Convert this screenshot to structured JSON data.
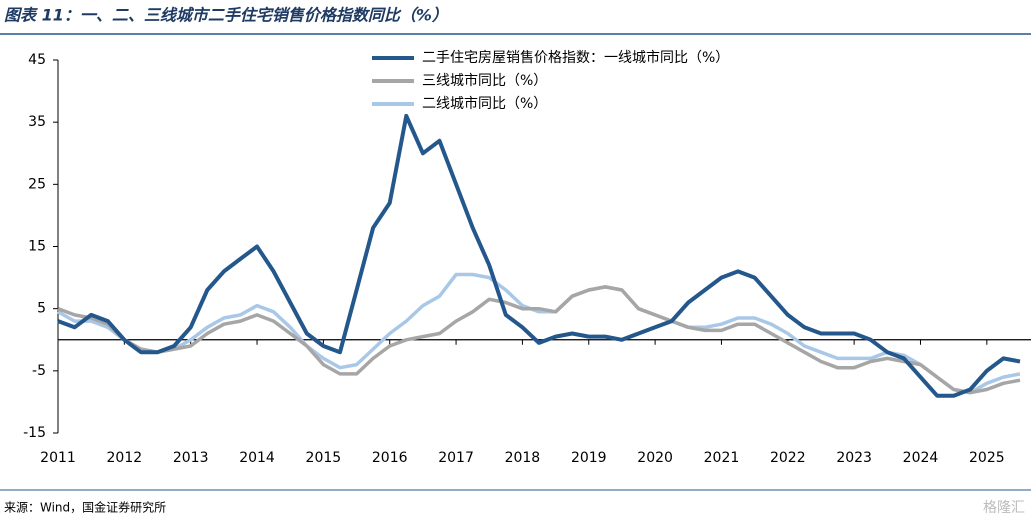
{
  "chart_data": {
    "type": "line",
    "title": "图表 11：一、二、三线城市二手住宅销售价格指数同比（%）",
    "source": "来源：Wind，国金证券研究所",
    "watermark": "格隆汇",
    "x": [
      2011,
      2011.25,
      2011.5,
      2011.75,
      2012,
      2012.25,
      2012.5,
      2012.75,
      2013,
      2013.25,
      2013.5,
      2013.75,
      2014,
      2014.25,
      2014.5,
      2014.75,
      2015,
      2015.25,
      2015.5,
      2015.75,
      2016,
      2016.25,
      2016.5,
      2016.75,
      2017,
      2017.25,
      2017.5,
      2017.75,
      2018,
      2018.25,
      2018.5,
      2018.75,
      2019,
      2019.25,
      2019.5,
      2019.75,
      2020,
      2020.25,
      2020.5,
      2020.75,
      2021,
      2021.25,
      2021.5,
      2021.75,
      2022,
      2022.25,
      2022.5,
      2022.75,
      2023,
      2023.25,
      2023.5,
      2023.75,
      2024,
      2024.25,
      2024.5,
      2024.75,
      2025,
      2025.25,
      2025.5
    ],
    "xlim": [
      2011,
      2025.5
    ],
    "xticks": [
      2011,
      2012,
      2013,
      2014,
      2015,
      2016,
      2017,
      2018,
      2019,
      2020,
      2021,
      2022,
      2023,
      2024,
      2025
    ],
    "ylim": [
      -15,
      45
    ],
    "yticks": [
      45,
      35,
      25,
      15,
      5,
      -5,
      -15
    ],
    "legend": "top-center",
    "series": [
      {
        "name": "二手住宅房屋销售价格指数：一线城市同比（%）",
        "color": "#24578c",
        "values": [
          3,
          2,
          4,
          3,
          0,
          -2,
          -2,
          -1,
          2,
          8,
          11,
          13,
          15,
          11,
          6,
          1,
          -1,
          -2,
          8,
          18,
          22,
          36,
          30,
          32,
          25,
          18,
          12,
          4,
          2,
          -0.5,
          0.5,
          1,
          0.5,
          0.5,
          0,
          1,
          2,
          3,
          6,
          8,
          10,
          11,
          10,
          7,
          4,
          2,
          1,
          1,
          1,
          0,
          -2,
          -3,
          -6,
          -9,
          -9,
          -8,
          -5,
          -3,
          -3.5
        ]
      },
      {
        "name": "三线城市同比（%）",
        "color": "#a6a6a6",
        "values": [
          5,
          4,
          3.5,
          2.5,
          0,
          -1.5,
          -2,
          -1.5,
          -1,
          1,
          2.5,
          3,
          4,
          3,
          1,
          -1,
          -4,
          -5.5,
          -5.5,
          -3,
          -1,
          0,
          0.5,
          1,
          3,
          4.5,
          6.5,
          6,
          5,
          5,
          4.5,
          7,
          8,
          8.5,
          8,
          5,
          4,
          3,
          2,
          1.5,
          1.5,
          2.5,
          2.5,
          1,
          -0.5,
          -2,
          -3.5,
          -4.5,
          -4.5,
          -3.5,
          -3,
          -3.5,
          -4,
          -6,
          -8,
          -8.5,
          -8,
          -7,
          -6.5
        ]
      },
      {
        "name": "二线城市同比（%）",
        "color": "#a9c8e8",
        "values": [
          4.5,
          3,
          3,
          2,
          0,
          -1.5,
          -2,
          -1.5,
          0,
          2,
          3.5,
          4,
          5.5,
          4.5,
          2,
          -1,
          -3,
          -4.5,
          -4,
          -1.5,
          1,
          3,
          5.5,
          7,
          10.5,
          10.5,
          10,
          8,
          5.5,
          4.5,
          4.5,
          7,
          8,
          8.5,
          8,
          5,
          4,
          3,
          2,
          2,
          2.5,
          3.5,
          3.5,
          2.5,
          1,
          -1,
          -2,
          -3,
          -3,
          -3,
          -2,
          -2.5,
          -4,
          -6,
          -8,
          -8.5,
          -7,
          -6,
          -5.5
        ]
      }
    ]
  }
}
